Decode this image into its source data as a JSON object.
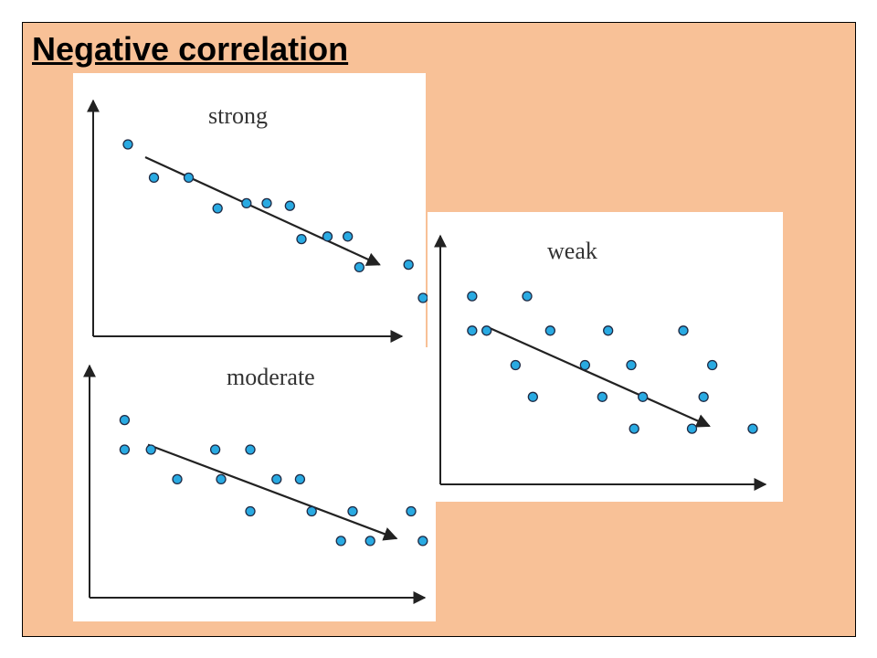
{
  "title": "Negative correlation",
  "colors": {
    "background": "#f8c197",
    "panel": "#ffffff",
    "point_fill": "#29aae2",
    "point_stroke": "#1f2a44",
    "axis": "#222222"
  },
  "chart_data": [
    {
      "type": "scatter",
      "label": "strong",
      "xlabel": "",
      "ylabel": "",
      "points": [
        [
          1.2,
          7.5
        ],
        [
          2.1,
          6.2
        ],
        [
          3.3,
          6.2
        ],
        [
          4.3,
          5.0
        ],
        [
          5.3,
          5.2
        ],
        [
          6.0,
          5.2
        ],
        [
          6.8,
          5.1
        ],
        [
          7.2,
          3.8
        ],
        [
          8.1,
          3.9
        ],
        [
          8.8,
          3.9
        ],
        [
          9.2,
          2.7
        ],
        [
          10.9,
          2.8
        ],
        [
          11.4,
          1.5
        ]
      ],
      "trendline": [
        [
          1.8,
          7.0
        ],
        [
          9.9,
          2.8
        ]
      ],
      "xlim": [
        0,
        12
      ],
      "ylim": [
        0,
        10
      ]
    },
    {
      "type": "scatter",
      "label": "moderate",
      "xlabel": "",
      "ylabel": "",
      "points": [
        [
          1.2,
          7.2
        ],
        [
          1.2,
          6.0
        ],
        [
          2.1,
          6.0
        ],
        [
          3.0,
          4.8
        ],
        [
          4.3,
          6.0
        ],
        [
          4.5,
          4.8
        ],
        [
          5.5,
          6.0
        ],
        [
          5.5,
          3.5
        ],
        [
          6.4,
          4.8
        ],
        [
          7.2,
          4.8
        ],
        [
          7.6,
          3.5
        ],
        [
          9.0,
          3.5
        ],
        [
          8.6,
          2.3
        ],
        [
          9.6,
          2.3
        ],
        [
          11.0,
          3.5
        ],
        [
          11.4,
          2.3
        ]
      ],
      "trendline": [
        [
          2.0,
          6.2
        ],
        [
          10.5,
          2.4
        ]
      ],
      "xlim": [
        0,
        12
      ],
      "ylim": [
        0,
        10
      ]
    },
    {
      "type": "scatter",
      "label": "weak",
      "xlabel": "",
      "ylabel": "",
      "points": [
        [
          1.1,
          7.1
        ],
        [
          1.1,
          5.8
        ],
        [
          1.6,
          5.8
        ],
        [
          2.6,
          4.5
        ],
        [
          3.0,
          7.1
        ],
        [
          3.2,
          3.3
        ],
        [
          3.8,
          5.8
        ],
        [
          5.0,
          4.5
        ],
        [
          5.6,
          3.3
        ],
        [
          5.8,
          5.8
        ],
        [
          6.6,
          4.5
        ],
        [
          6.7,
          2.1
        ],
        [
          7.0,
          3.3
        ],
        [
          8.4,
          5.8
        ],
        [
          8.7,
          2.1
        ],
        [
          9.1,
          3.3
        ],
        [
          9.4,
          4.5
        ],
        [
          10.8,
          2.1
        ]
      ],
      "trendline": [
        [
          1.7,
          5.9
        ],
        [
          9.3,
          2.2
        ]
      ],
      "xlim": [
        0,
        12
      ],
      "ylim": [
        0,
        10
      ]
    }
  ]
}
